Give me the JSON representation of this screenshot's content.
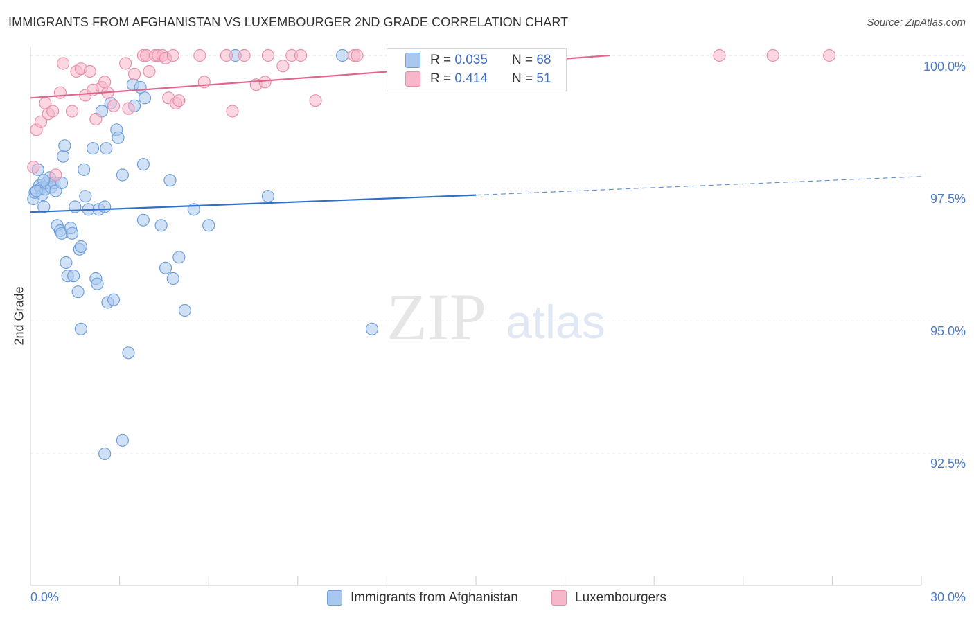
{
  "title": "IMMIGRANTS FROM AFGHANISTAN VS LUXEMBOURGER 2ND GRADE CORRELATION CHART",
  "source": "Source: ZipAtlas.com",
  "watermark": {
    "zip": "ZIP",
    "atlas": "atlas"
  },
  "colors": {
    "blue_fill": "#a9c8ef",
    "blue_stroke": "#6f9fdb",
    "blue_line": "#2f6fcc",
    "pink_fill": "#f7b7ca",
    "pink_stroke": "#e98fab",
    "pink_line": "#e0668f",
    "grid": "#dddddd",
    "tick_text": "#4a7cc7"
  },
  "legend": {
    "rows": [
      {
        "r_label": "R =",
        "r_value": "0.035",
        "n_label": "N =",
        "n_value": "68"
      },
      {
        "r_label": "R =",
        "r_value": "0.414",
        "n_label": "N =",
        "n_value": "51"
      }
    ]
  },
  "chart_data": {
    "type": "scatter",
    "title": "IMMIGRANTS FROM AFGHANISTAN VS LUXEMBOURGER 2ND GRADE CORRELATION CHART",
    "xlabel": "",
    "ylabel": "2nd Grade",
    "xlim": [
      0,
      30
    ],
    "ylim": [
      90.0,
      100.25
    ],
    "x_tick_labels": [
      "0.0%",
      "30.0%"
    ],
    "y_ticks": [
      92.5,
      95.0,
      97.5,
      100.0
    ],
    "y_tick_labels": [
      "92.5%",
      "95.0%",
      "97.5%",
      "100.0%"
    ],
    "legend_placement": "top-center",
    "series": [
      {
        "name": "Immigrants from Afghanistan",
        "color": "blue",
        "R": 0.035,
        "N": 68,
        "trend": {
          "x0": 0,
          "y0": 97.05,
          "x1": 15,
          "y1": 97.37,
          "dash_to_x": 30,
          "dash_to_y": 97.72
        },
        "points": [
          [
            0.1,
            97.3
          ],
          [
            0.15,
            97.42
          ],
          [
            0.25,
            97.85
          ],
          [
            0.3,
            97.55
          ],
          [
            0.35,
            97.5
          ],
          [
            0.4,
            97.38
          ],
          [
            0.45,
            97.15
          ],
          [
            0.5,
            97.48
          ],
          [
            0.55,
            97.6
          ],
          [
            0.65,
            97.7
          ],
          [
            0.7,
            97.52
          ],
          [
            0.8,
            97.6
          ],
          [
            0.85,
            97.45
          ],
          [
            0.9,
            96.8
          ],
          [
            1.0,
            96.7
          ],
          [
            1.05,
            96.65
          ],
          [
            1.1,
            98.1
          ],
          [
            1.15,
            98.3
          ],
          [
            1.2,
            96.1
          ],
          [
            1.25,
            95.85
          ],
          [
            1.35,
            96.75
          ],
          [
            1.4,
            96.65
          ],
          [
            1.45,
            95.85
          ],
          [
            1.5,
            97.15
          ],
          [
            1.6,
            95.55
          ],
          [
            1.65,
            96.35
          ],
          [
            1.7,
            96.4
          ],
          [
            1.7,
            94.85
          ],
          [
            1.8,
            97.85
          ],
          [
            1.85,
            97.35
          ],
          [
            1.95,
            97.1
          ],
          [
            2.1,
            98.25
          ],
          [
            2.2,
            95.8
          ],
          [
            2.25,
            95.7
          ],
          [
            2.3,
            97.1
          ],
          [
            2.4,
            98.95
          ],
          [
            2.5,
            97.15
          ],
          [
            2.55,
            98.25
          ],
          [
            2.6,
            95.35
          ],
          [
            2.7,
            99.1
          ],
          [
            2.8,
            95.4
          ],
          [
            2.9,
            98.6
          ],
          [
            2.95,
            98.45
          ],
          [
            3.1,
            97.75
          ],
          [
            3.3,
            94.4
          ],
          [
            3.45,
            99.45
          ],
          [
            3.5,
            99.05
          ],
          [
            3.7,
            99.4
          ],
          [
            3.8,
            96.9
          ],
          [
            3.85,
            99.2
          ],
          [
            3.8,
            97.95
          ],
          [
            4.4,
            96.8
          ],
          [
            4.55,
            96.0
          ],
          [
            4.7,
            97.65
          ],
          [
            4.8,
            95.8
          ],
          [
            5.0,
            96.2
          ],
          [
            5.2,
            95.2
          ],
          [
            5.5,
            97.1
          ],
          [
            6.0,
            96.8
          ],
          [
            6.9,
            100.0
          ],
          [
            8.0,
            97.35
          ],
          [
            10.5,
            100.0
          ],
          [
            11.5,
            94.85
          ],
          [
            2.5,
            92.5
          ],
          [
            3.1,
            92.75
          ],
          [
            0.45,
            97.65
          ],
          [
            1.05,
            97.6
          ],
          [
            0.2,
            97.45
          ]
        ]
      },
      {
        "name": "Luxembourgers",
        "color": "pink",
        "R": 0.414,
        "N": 51,
        "trend": {
          "x0": 0,
          "y0": 99.2,
          "x1": 19.5,
          "y1": 100.0
        },
        "points": [
          [
            0.1,
            97.9
          ],
          [
            0.2,
            98.6
          ],
          [
            0.35,
            98.75
          ],
          [
            0.5,
            99.1
          ],
          [
            0.6,
            98.9
          ],
          [
            0.75,
            98.95
          ],
          [
            0.85,
            97.75
          ],
          [
            1.0,
            99.3
          ],
          [
            1.1,
            99.85
          ],
          [
            1.4,
            98.95
          ],
          [
            1.55,
            99.7
          ],
          [
            1.7,
            99.75
          ],
          [
            1.85,
            99.25
          ],
          [
            2.0,
            99.7
          ],
          [
            2.1,
            99.35
          ],
          [
            2.2,
            98.8
          ],
          [
            2.4,
            99.4
          ],
          [
            2.5,
            99.5
          ],
          [
            2.6,
            99.3
          ],
          [
            2.8,
            99.05
          ],
          [
            3.2,
            99.85
          ],
          [
            3.3,
            99.0
          ],
          [
            3.5,
            99.65
          ],
          [
            3.8,
            100.0
          ],
          [
            3.9,
            100.0
          ],
          [
            4.0,
            99.7
          ],
          [
            4.2,
            100.0
          ],
          [
            4.3,
            100.0
          ],
          [
            4.45,
            100.0
          ],
          [
            4.55,
            99.95
          ],
          [
            4.8,
            100.0
          ],
          [
            4.65,
            99.2
          ],
          [
            4.9,
            99.1
          ],
          [
            5.0,
            99.15
          ],
          [
            5.7,
            100.0
          ],
          [
            5.85,
            99.5
          ],
          [
            6.6,
            100.0
          ],
          [
            6.8,
            98.95
          ],
          [
            7.2,
            100.0
          ],
          [
            7.6,
            99.45
          ],
          [
            7.9,
            99.5
          ],
          [
            8.0,
            100.0
          ],
          [
            8.5,
            99.8
          ],
          [
            8.8,
            100.0
          ],
          [
            9.1,
            100.0
          ],
          [
            9.6,
            99.15
          ],
          [
            10.9,
            100.0
          ],
          [
            11.0,
            100.0
          ],
          [
            23.2,
            100.0
          ],
          [
            25.0,
            100.0
          ],
          [
            26.9,
            100.0
          ]
        ]
      }
    ]
  },
  "bottom_legend": [
    {
      "label": "Immigrants from Afghanistan",
      "color": "blue"
    },
    {
      "label": "Luxembourgers",
      "color": "pink"
    }
  ]
}
